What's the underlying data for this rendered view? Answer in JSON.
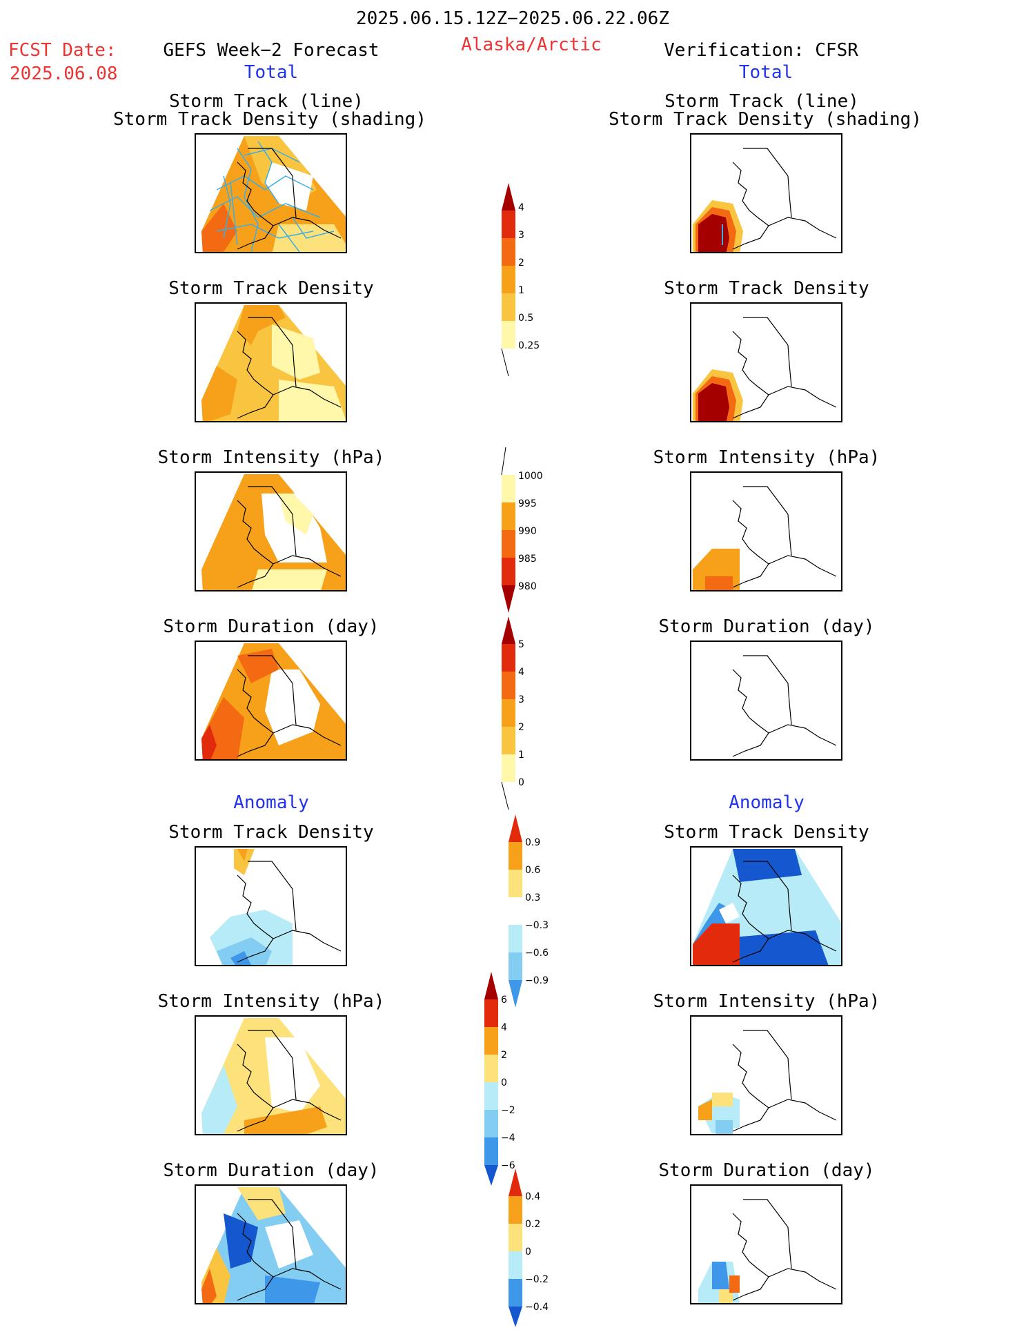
{
  "header": {
    "period": "2025.06.15.12Z−2025.06.22.06Z",
    "fcst_label": "FCST Date:",
    "fcst_date": "2025.06.08",
    "forecast_title": "GEFS Week−2 Forecast",
    "region": "Alaska/Arctic",
    "verification_title": "Verification: CFSR"
  },
  "sections": {
    "total": "Total",
    "anomaly": "Anomaly"
  },
  "panel_titles": {
    "track_line": "Storm Track (line)",
    "track_shading": "Storm Track Density (shading)",
    "density": "Storm Track Density",
    "intensity": "Storm Intensity (hPa)",
    "duration": "Storm Duration (day)"
  },
  "colorbars": {
    "density_total": [
      "4",
      "3",
      "2",
      "1",
      "0.5",
      "0.25"
    ],
    "intensity_total": [
      "1000",
      "995",
      "990",
      "985",
      "980"
    ],
    "duration_total": [
      "5",
      "4",
      "3",
      "2",
      "1",
      "0"
    ],
    "density_anom": [
      "0.9",
      "0.6",
      "0.3",
      "−0.3",
      "−0.6",
      "−0.9"
    ],
    "intensity_anom": [
      "6",
      "4",
      "2",
      "0",
      "−2",
      "−4",
      "−6"
    ],
    "duration_anom": [
      "0.4",
      "0.2",
      "0",
      "−0.2",
      "−0.4"
    ]
  },
  "colors": {
    "pale_yellow": "#fff7aa",
    "light_yellow": "#fde17a",
    "yellow_orange": "#f9c440",
    "orange": "#f7a11a",
    "orange_red": "#f46a12",
    "red": "#e22b0c",
    "dark_red": "#a50000",
    "light_blue": "#b7ebf7",
    "sky_blue": "#83cdf2",
    "mid_blue": "#3f97ea",
    "dark_blue": "#1457cf",
    "track_line": "#3aaee6"
  }
}
